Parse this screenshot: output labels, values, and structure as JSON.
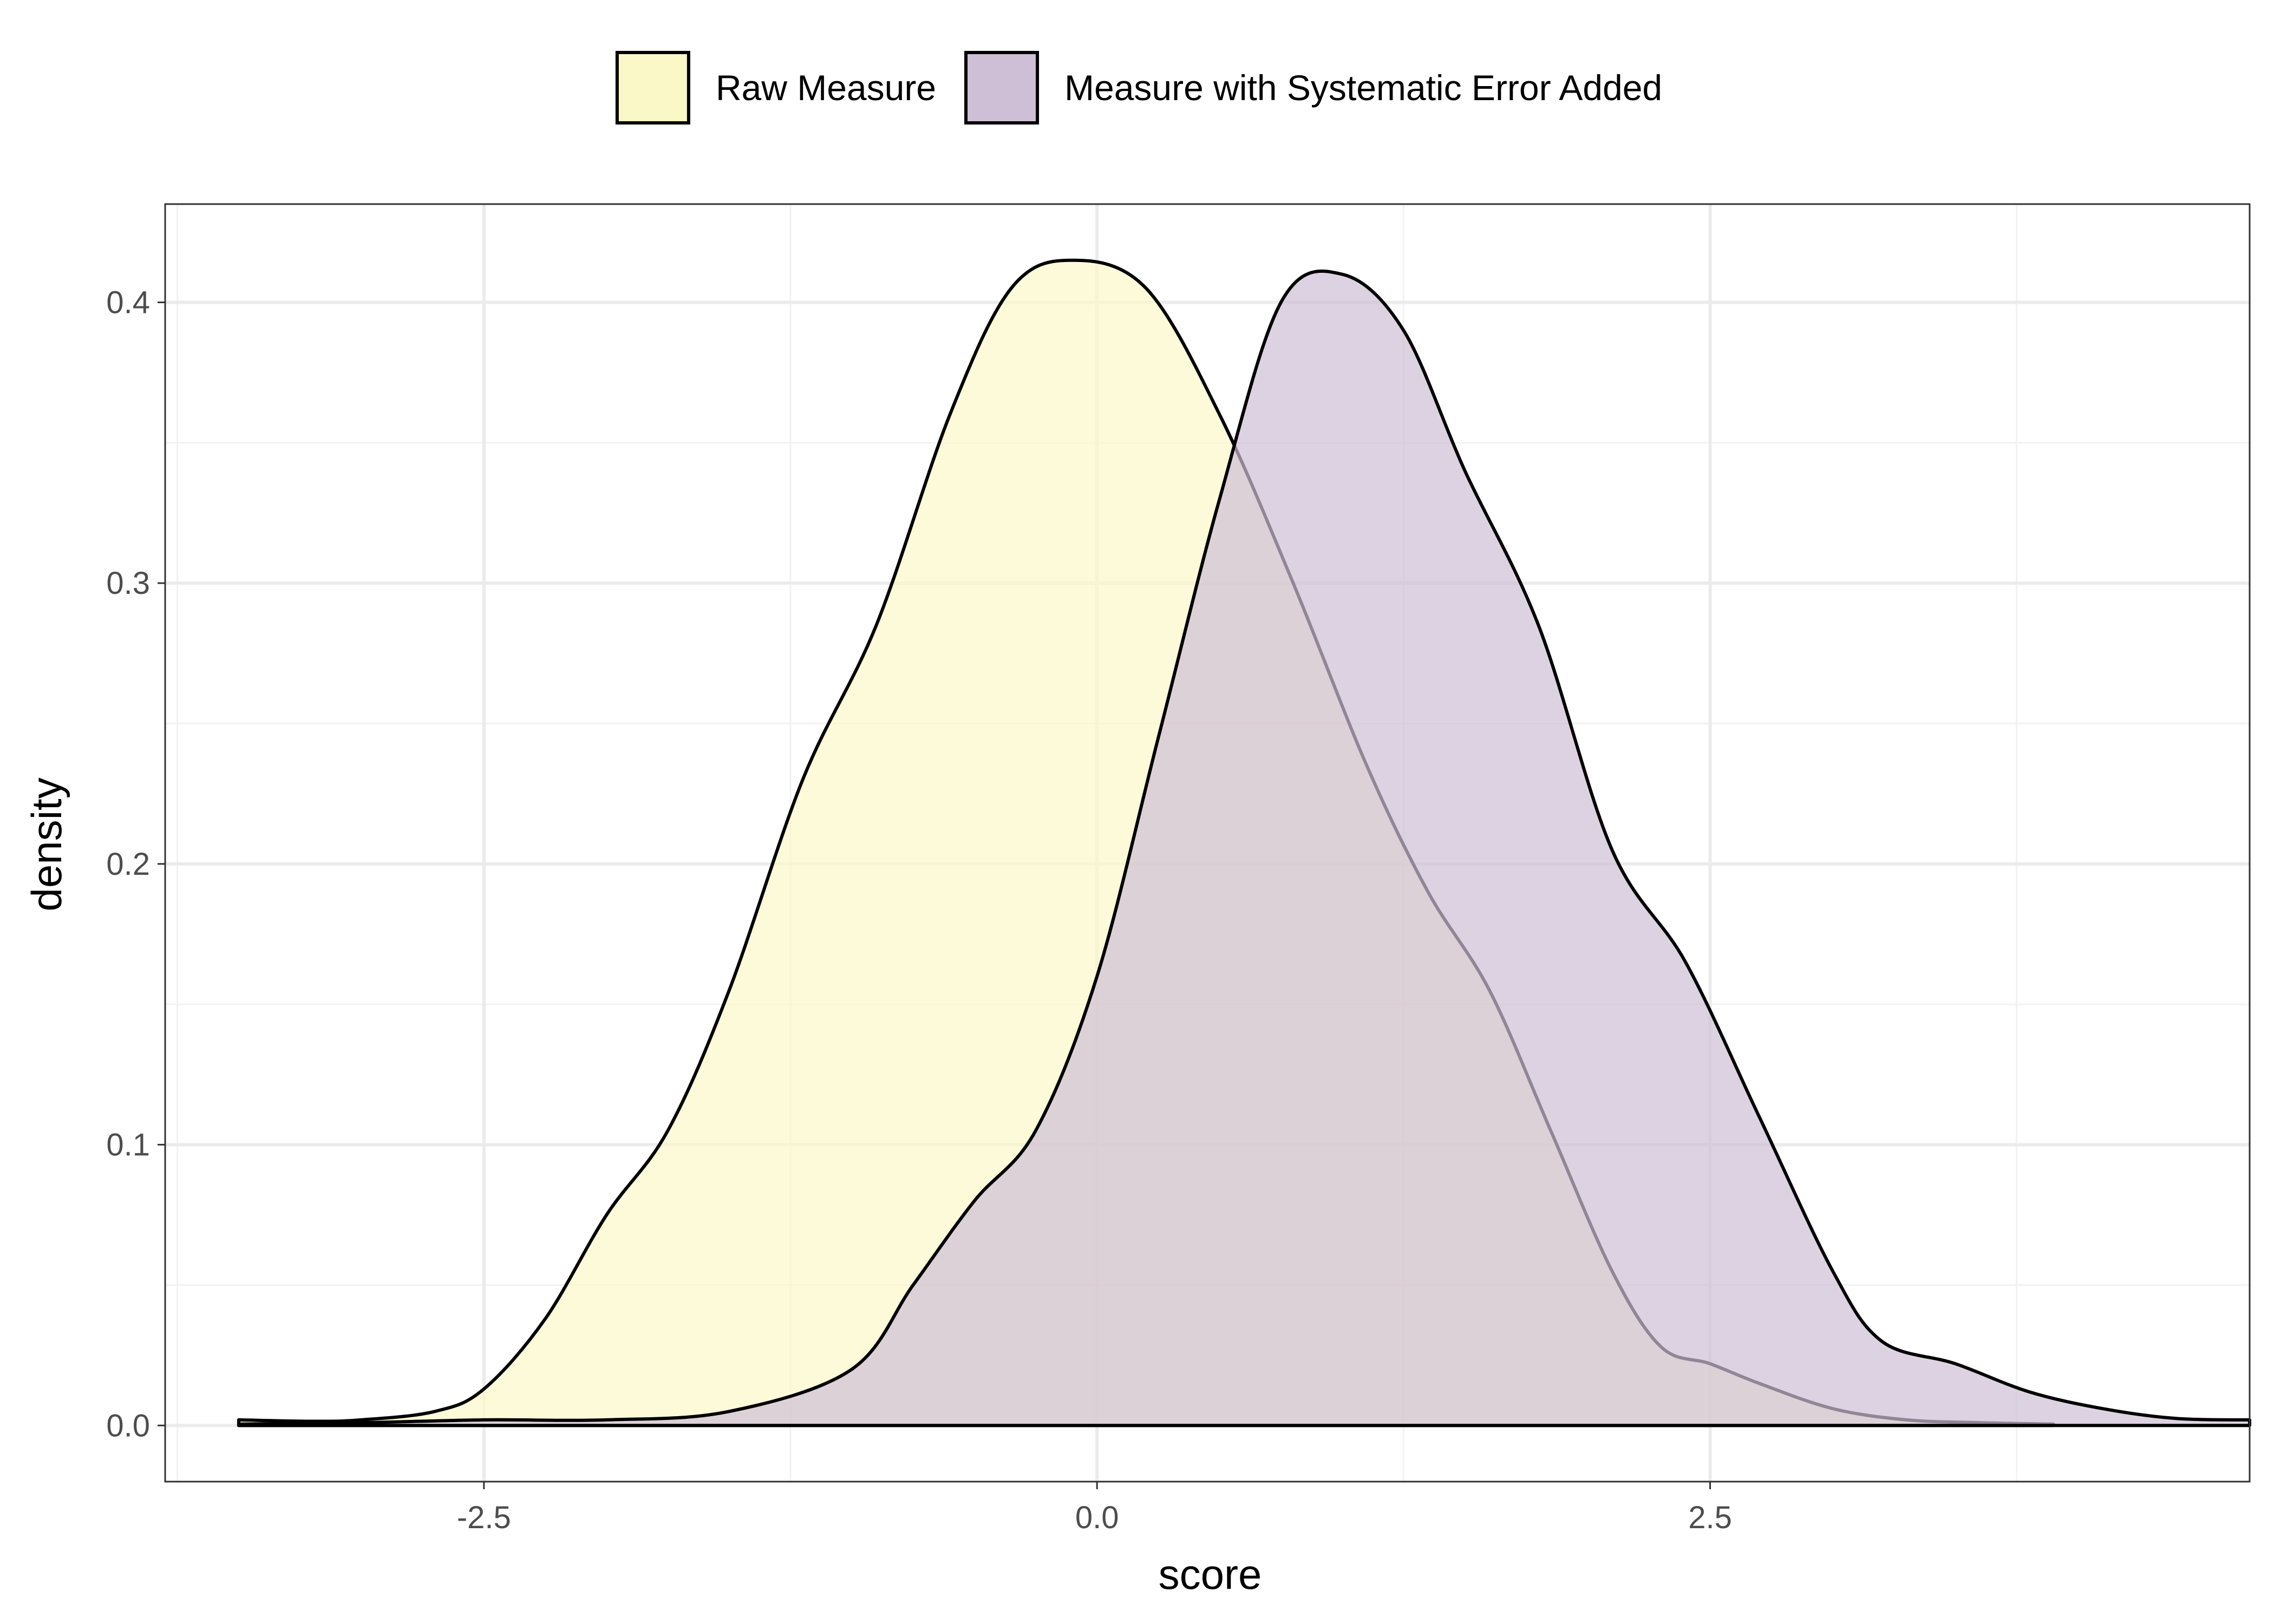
{
  "chart_data": {
    "type": "area",
    "subtype": "density",
    "xlabel": "score",
    "ylabel": "density",
    "xlim": [
      -3.8,
      4.7
    ],
    "ylim": [
      -0.02,
      0.435
    ],
    "x_ticks": [
      -2.5,
      0.0,
      2.5
    ],
    "x_tick_labels": [
      "-2.5",
      "0.0",
      "2.5"
    ],
    "y_ticks": [
      0.0,
      0.1,
      0.2,
      0.3,
      0.4
    ],
    "y_tick_labels": [
      "0.0",
      "0.1",
      "0.2",
      "0.3",
      "0.4"
    ],
    "grid": true,
    "legend_position": "top",
    "series": [
      {
        "name": "Raw Measure",
        "color": "#fbf8c8",
        "points": [
          [
            -3.5,
            0.002
          ],
          [
            -3.2,
            0.0015
          ],
          [
            -3.0,
            0.002
          ],
          [
            -2.7,
            0.005
          ],
          [
            -2.5,
            0.013
          ],
          [
            -2.25,
            0.038
          ],
          [
            -2.0,
            0.075
          ],
          [
            -1.75,
            0.105
          ],
          [
            -1.5,
            0.155
          ],
          [
            -1.2,
            0.23
          ],
          [
            -0.9,
            0.285
          ],
          [
            -0.6,
            0.36
          ],
          [
            -0.35,
            0.405
          ],
          [
            -0.1,
            0.415
          ],
          [
            0.2,
            0.405
          ],
          [
            0.5,
            0.36
          ],
          [
            0.8,
            0.3
          ],
          [
            1.1,
            0.235
          ],
          [
            1.35,
            0.19
          ],
          [
            1.6,
            0.155
          ],
          [
            1.85,
            0.105
          ],
          [
            2.1,
            0.055
          ],
          [
            2.3,
            0.028
          ],
          [
            2.5,
            0.022
          ],
          [
            2.7,
            0.015
          ],
          [
            3.0,
            0.006
          ],
          [
            3.3,
            0.002
          ],
          [
            3.6,
            0.001
          ],
          [
            3.9,
            0.0005
          ]
        ]
      },
      {
        "name": "Measure with Systematic Error Added",
        "color": "#cfbfd6",
        "points": [
          [
            -3.5,
            0.0005
          ],
          [
            -3.0,
            0.001
          ],
          [
            -2.5,
            0.002
          ],
          [
            -2.0,
            0.002
          ],
          [
            -1.5,
            0.005
          ],
          [
            -1.0,
            0.02
          ],
          [
            -0.75,
            0.05
          ],
          [
            -0.5,
            0.08
          ],
          [
            -0.25,
            0.105
          ],
          [
            0.0,
            0.16
          ],
          [
            0.25,
            0.245
          ],
          [
            0.5,
            0.33
          ],
          [
            0.75,
            0.4
          ],
          [
            1.0,
            0.41
          ],
          [
            1.25,
            0.39
          ],
          [
            1.5,
            0.34
          ],
          [
            1.8,
            0.285
          ],
          [
            2.1,
            0.205
          ],
          [
            2.4,
            0.165
          ],
          [
            2.7,
            0.11
          ],
          [
            3.0,
            0.055
          ],
          [
            3.2,
            0.03
          ],
          [
            3.5,
            0.022
          ],
          [
            3.8,
            0.012
          ],
          [
            4.1,
            0.006
          ],
          [
            4.4,
            0.0025
          ],
          [
            4.7,
            0.002
          ]
        ]
      }
    ]
  }
}
